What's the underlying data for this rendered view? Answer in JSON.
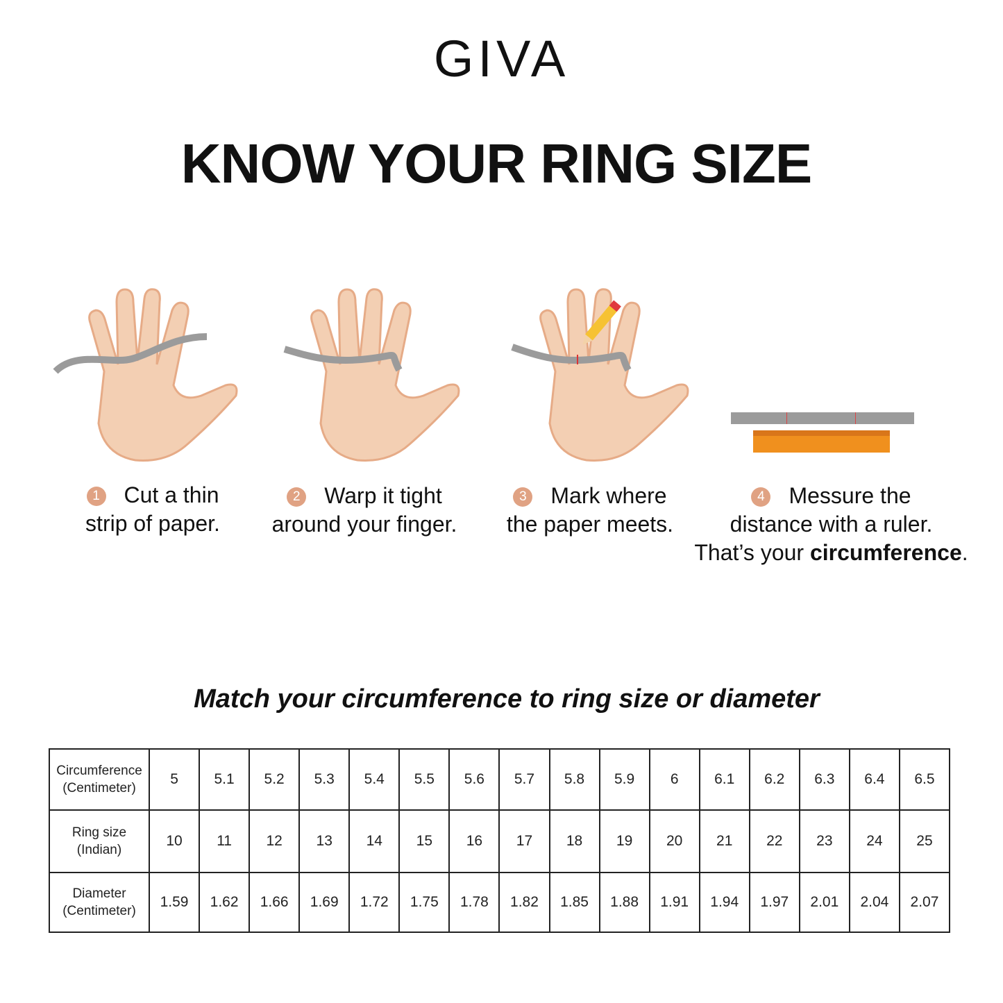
{
  "logo": "GIVA",
  "title": "KNOW YOUR RING SIZE",
  "steps": [
    {
      "number": "1",
      "line1": "Cut a thin",
      "line2": "strip of paper."
    },
    {
      "number": "2",
      "line1": "Warp it tight",
      "line2": "around your finger."
    },
    {
      "number": "3",
      "line1": "Mark where",
      "line2": "the paper meets."
    },
    {
      "number": "4",
      "line1": "Messure the",
      "line2": "distance with a ruler.",
      "line3_prefix": "That’s your ",
      "line3_bold": "circumference",
      "line3_suffix": "."
    }
  ],
  "subtitle": "Match your circumference to ring size or diameter",
  "table": {
    "rows": [
      {
        "header": [
          "Circumference",
          "(Centimeter)"
        ],
        "values": [
          "5",
          "5.1",
          "5.2",
          "5.3",
          "5.4",
          "5.5",
          "5.6",
          "5.7",
          "5.8",
          "5.9",
          "6",
          "6.1",
          "6.2",
          "6.3",
          "6.4",
          "6.5"
        ]
      },
      {
        "header": [
          "Ring size",
          "(Indian)"
        ],
        "values": [
          "10",
          "11",
          "12",
          "13",
          "14",
          "15",
          "16",
          "17",
          "18",
          "19",
          "20",
          "21",
          "22",
          "23",
          "24",
          "25"
        ]
      },
      {
        "header": [
          "Diameter",
          "(Centimeter)"
        ],
        "values": [
          "1.59",
          "1.62",
          "1.66",
          "1.69",
          "1.72",
          "1.75",
          "1.78",
          "1.82",
          "1.85",
          "1.88",
          "1.91",
          "1.94",
          "1.97",
          "2.01",
          "2.04",
          "2.07"
        ]
      }
    ]
  },
  "colors": {
    "skin": "#f3cfb3",
    "skin_outline": "#e6ab87",
    "paper_strip": "#9b9b9b",
    "ruler": "#f0901e",
    "step_badge": "#e0a283"
  }
}
